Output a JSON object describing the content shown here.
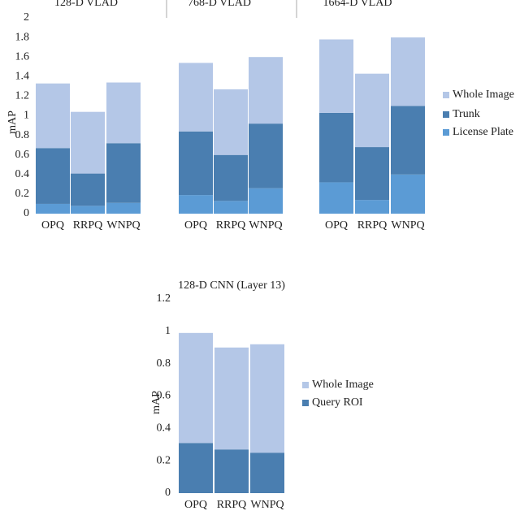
{
  "chart_data": [
    {
      "type": "stacked_bar",
      "ylabel": "mAP",
      "groups": [
        "128-D VLAD",
        "768-D VLAD",
        "1664-D VLAD"
      ],
      "categories": [
        "OPQ",
        "RRPQ",
        "WNPQ",
        "OPQ",
        "RRPQ",
        "WNPQ",
        "OPQ",
        "RRPQ",
        "WNPQ"
      ],
      "series": [
        {
          "name": "License Plate",
          "color": "#5b9bd5",
          "values": [
            0.1,
            0.08,
            0.11,
            0.19,
            0.13,
            0.26,
            0.32,
            0.14,
            0.4
          ]
        },
        {
          "name": "Trunk",
          "color": "#4a7eb0",
          "values": [
            0.57,
            0.33,
            0.61,
            0.65,
            0.47,
            0.66,
            0.71,
            0.54,
            0.7
          ]
        },
        {
          "name": "Whole Image",
          "color": "#b4c7e7",
          "values": [
            0.66,
            0.63,
            0.62,
            0.7,
            0.67,
            0.68,
            0.75,
            0.75,
            0.7
          ]
        }
      ],
      "ylim": [
        0,
        2
      ],
      "yticks": [
        0,
        {
          "value": 0.2,
          "label": "0.2"
        },
        {
          "value": 0.4,
          "label": "0.4"
        },
        {
          "value": 0.6,
          "label": "0.6"
        },
        {
          "value": 0.8,
          "label": "0.8"
        },
        1,
        {
          "value": 1.2,
          "label": "1.2"
        },
        {
          "value": 1.4,
          "label": "1.4"
        },
        {
          "value": 1.6,
          "label": "1.6"
        },
        {
          "value": 1.8,
          "label": "1.8"
        },
        2
      ]
    },
    {
      "type": "stacked_bar",
      "title": "128-D CNN (Layer 13)",
      "ylabel": "mAP",
      "categories": [
        "OPQ",
        "RRPQ",
        "WNPQ"
      ],
      "series": [
        {
          "name": "Query ROI",
          "color": "#4a7eb0",
          "values": [
            0.31,
            0.27,
            0.25
          ]
        },
        {
          "name": "Whole Image",
          "color": "#b4c7e7",
          "values": [
            0.68,
            0.63,
            0.67
          ]
        }
      ],
      "ylim": [
        0,
        1.2
      ],
      "yticks": [
        0,
        {
          "value": 0.2,
          "label": "0.2"
        },
        {
          "value": 0.4,
          "label": "0.4"
        },
        {
          "value": 0.6,
          "label": "0.6"
        },
        {
          "value": 0.8,
          "label": "0.8"
        },
        1,
        {
          "value": 1.2,
          "label": "1.2"
        }
      ]
    }
  ]
}
